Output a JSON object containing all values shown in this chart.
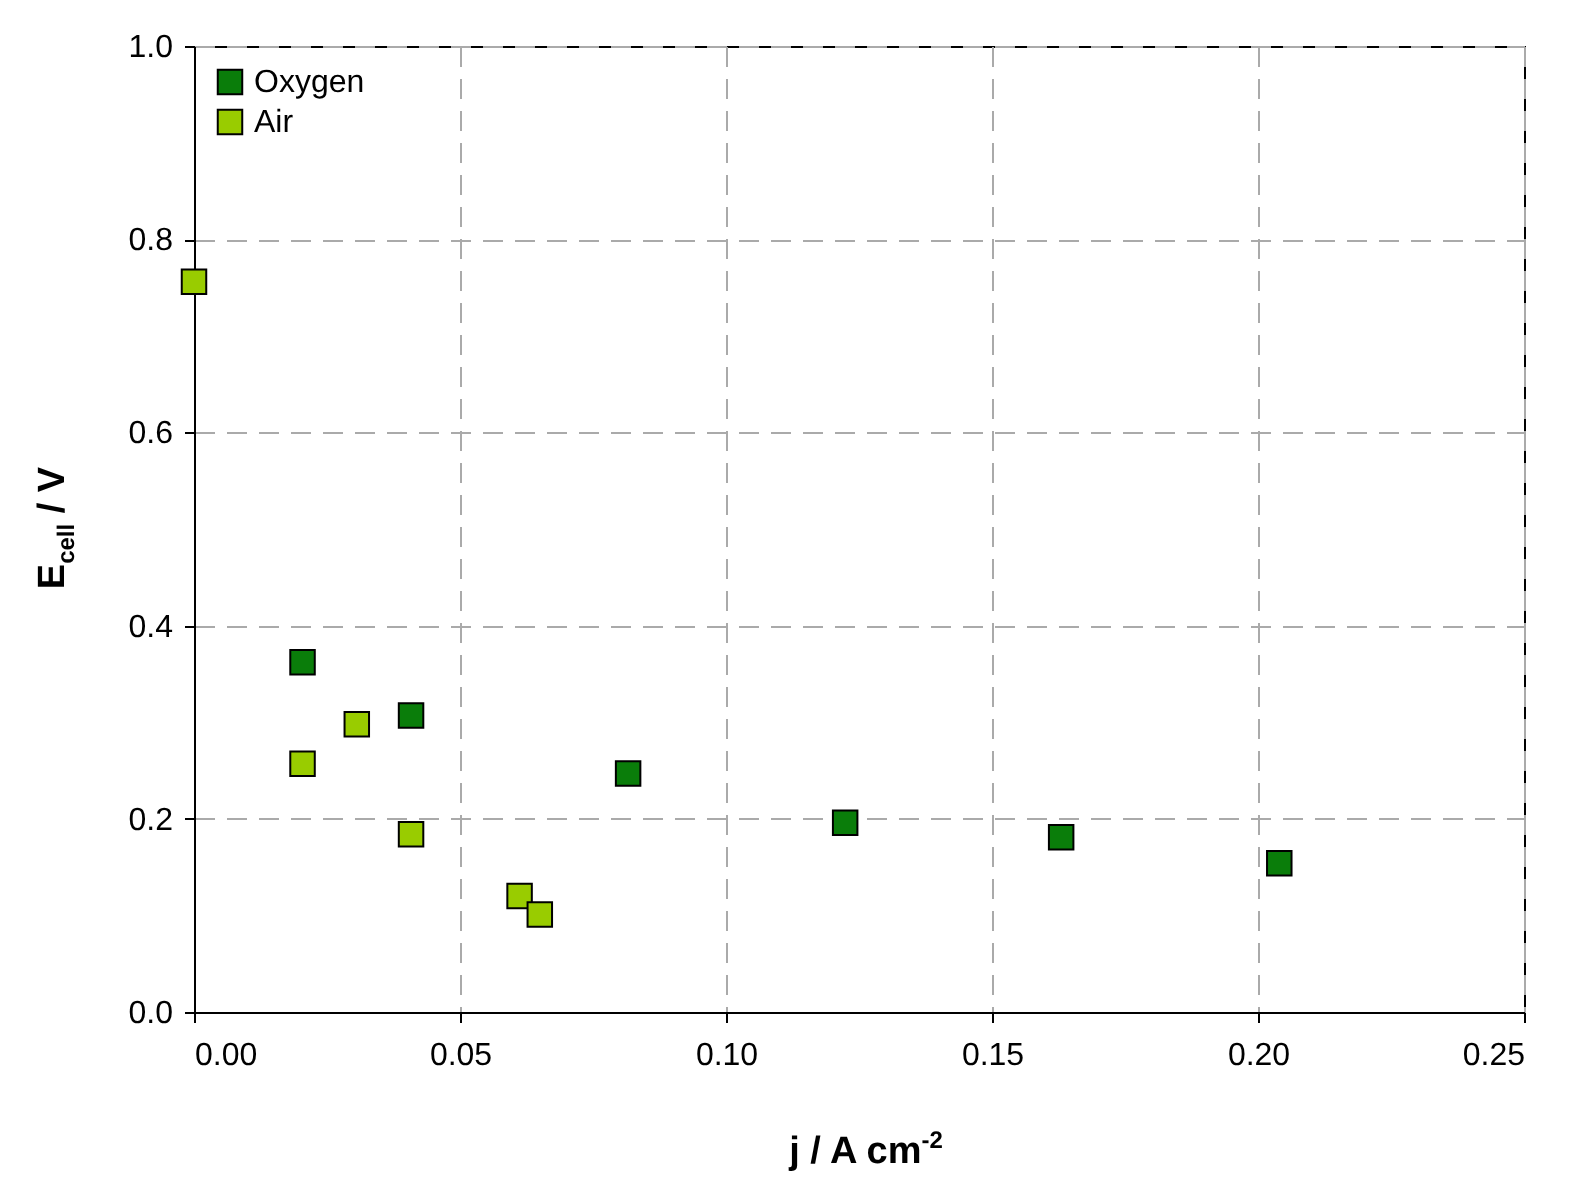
{
  "chart_data": {
    "type": "scatter",
    "xlabel": "j / A cm$^{-2}$",
    "ylabel": "E$_{cell}$ / V",
    "xlim": [
      0,
      0.25
    ],
    "ylim": [
      0,
      1.0
    ],
    "xticks": [
      {
        "value": 0,
        "label": "0.00"
      },
      {
        "value": 0.05,
        "label": "0.05"
      },
      {
        "value": 0.1,
        "label": "0.10"
      },
      {
        "value": 0.15,
        "label": "0.15"
      },
      {
        "value": 0.2,
        "label": "0.20"
      },
      {
        "value": 0.25,
        "label": "0.25"
      }
    ],
    "yticks": [
      {
        "value": 0,
        "label": "0.0"
      },
      {
        "value": 0.2,
        "label": "0.2"
      },
      {
        "value": 0.4,
        "label": "0.4"
      },
      {
        "value": 0.6,
        "label": "0.6"
      },
      {
        "value": 0.8,
        "label": "0.8"
      },
      {
        "value": 1.0,
        "label": "1.0"
      }
    ],
    "grid": true,
    "legend": "top left",
    "marker": "square",
    "series": [
      {
        "name": "Oxygen",
        "color": "#0a7d0a",
        "x": [
          0.0204,
          0.0408,
          0.0816,
          0.1224,
          0.163,
          0.204
        ],
        "values": [
          0.362,
          0.307,
          0.247,
          0.196,
          0.181,
          0.154
        ]
      },
      {
        "name": "Air",
        "color": "#99cc00",
        "x": [
          0,
          0.0204,
          0.0306,
          0.0408,
          0.0612,
          0.065
        ],
        "values": [
          0.756,
          0.257,
          0.298,
          0.184,
          0.12,
          0.101
        ]
      }
    ]
  }
}
